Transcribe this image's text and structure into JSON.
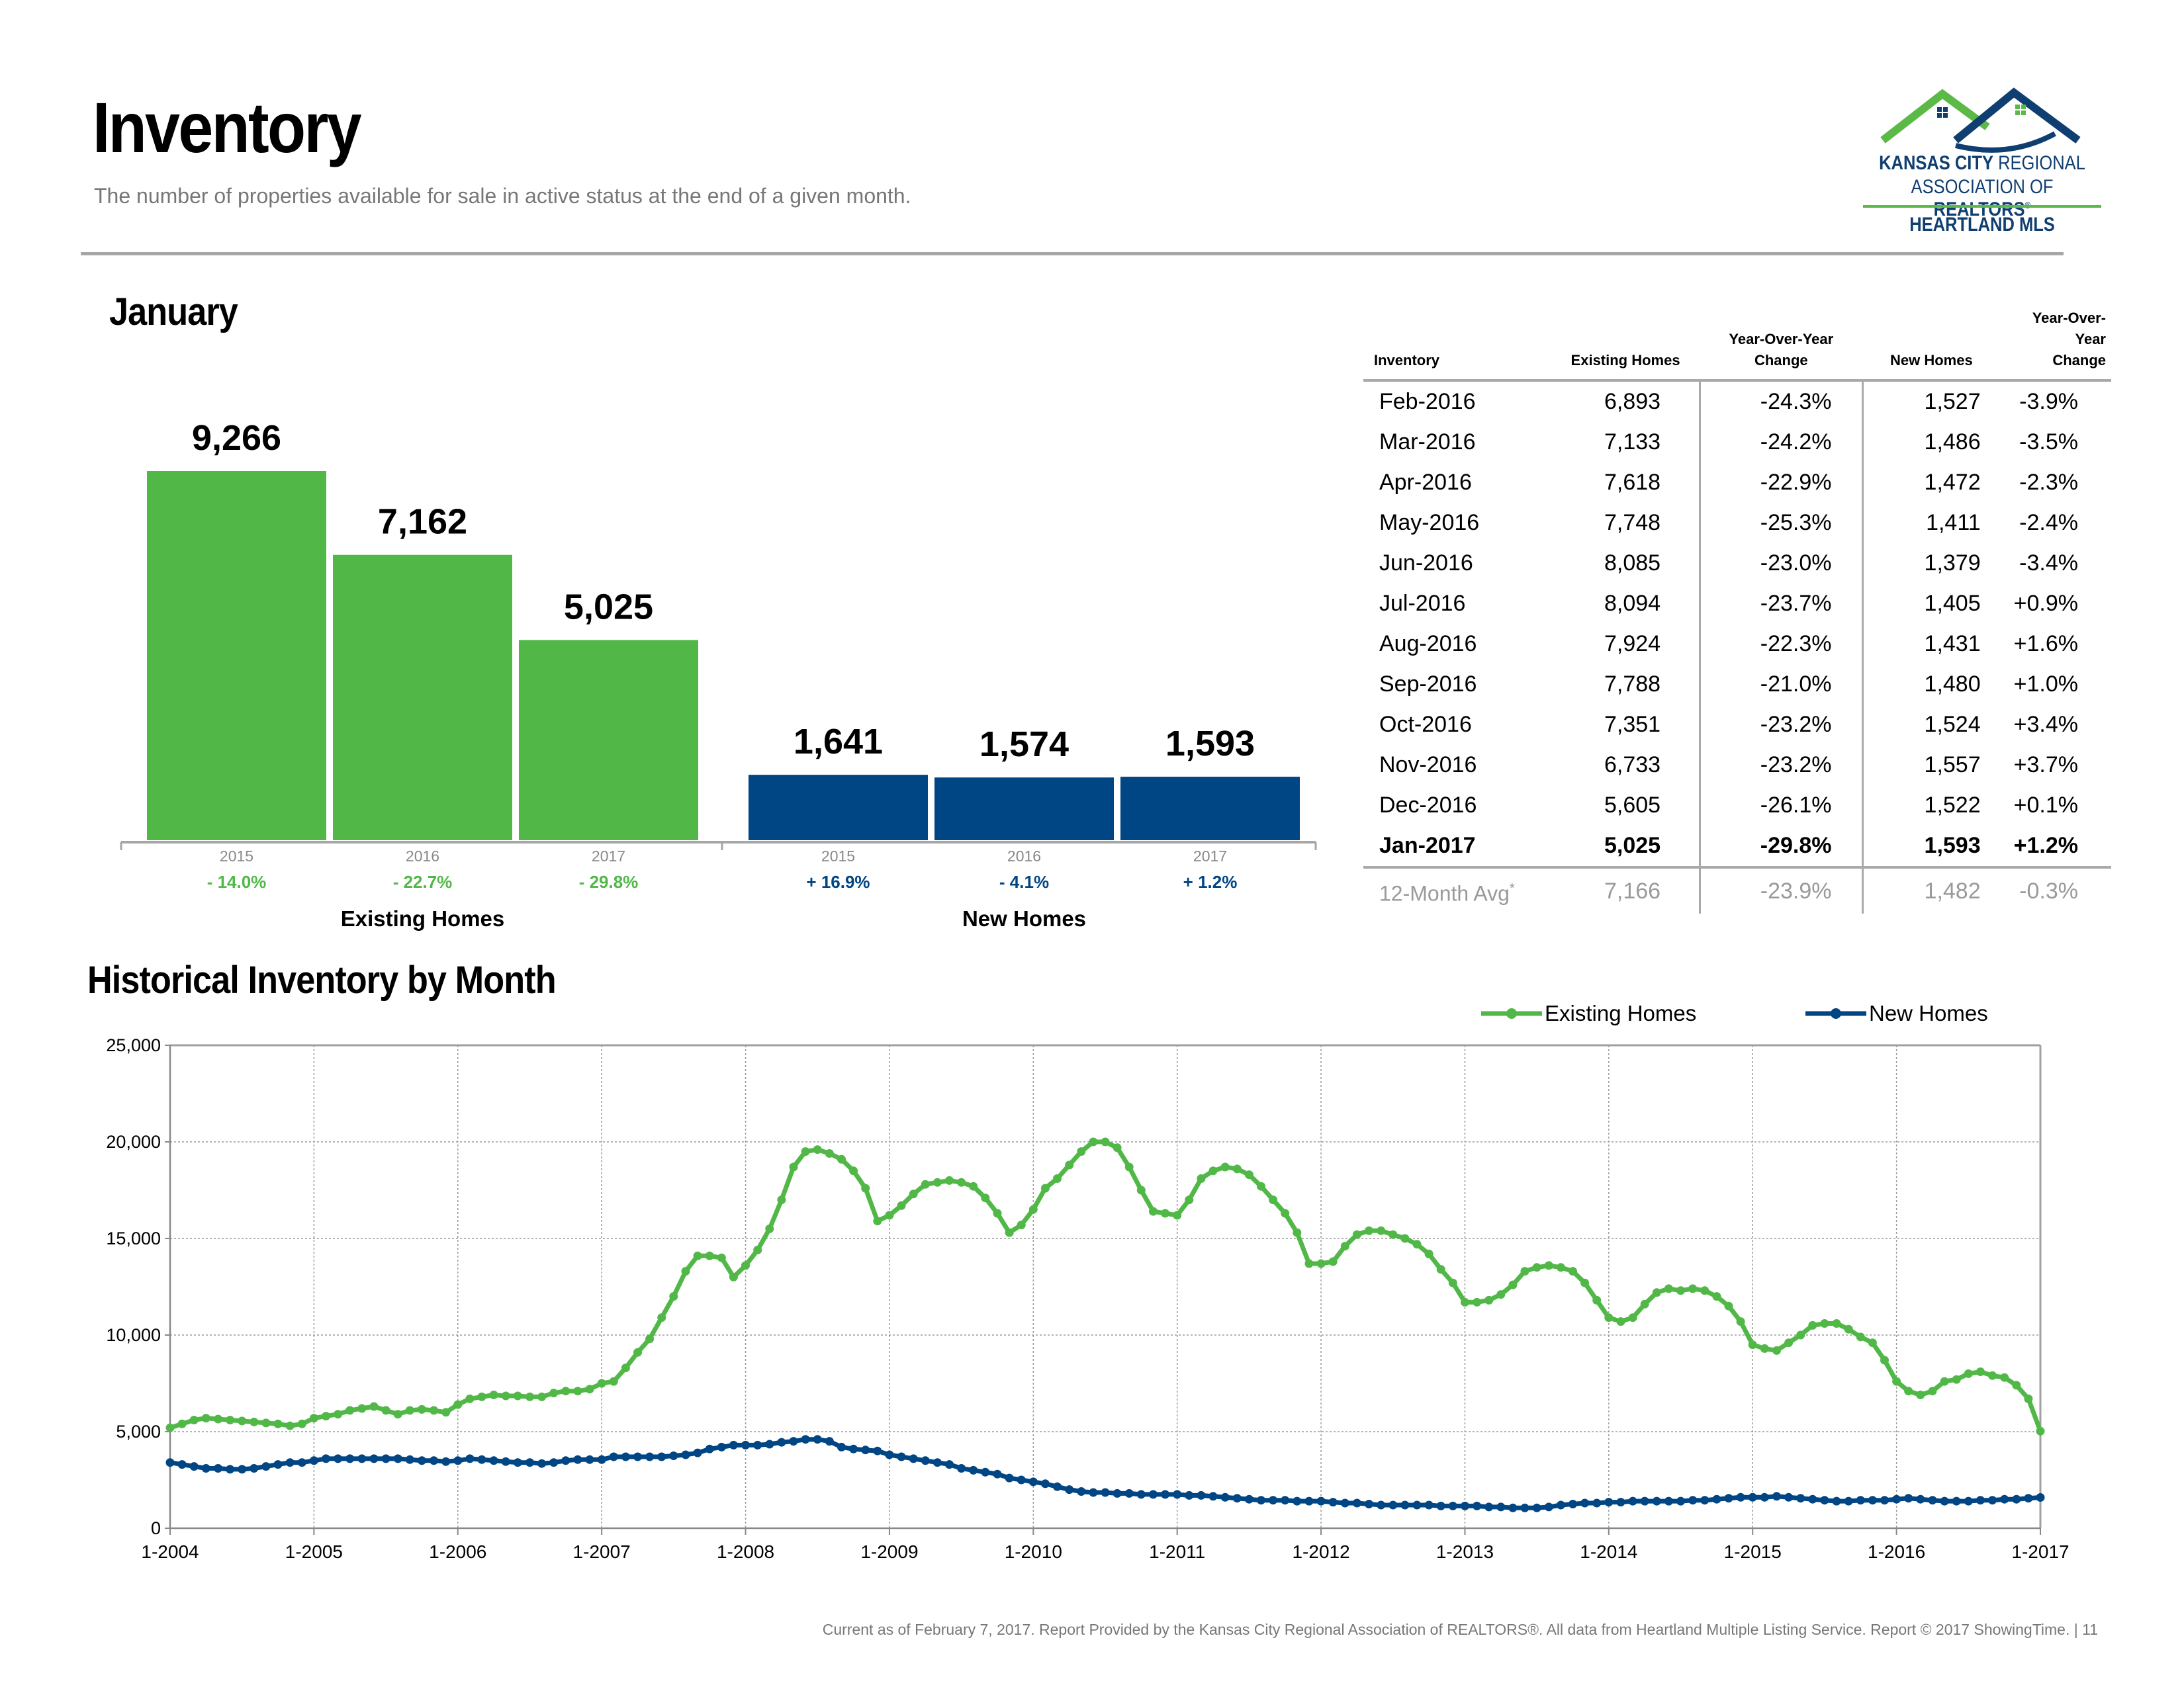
{
  "header": {
    "title": "Inventory",
    "subtitle": "The number of properties available for sale in active status at the end of a given month."
  },
  "logo": {
    "line1a": "KANSAS CITY",
    "line1b": " REGIONAL",
    "line2a": "ASSOCIATION OF ",
    "line2b": "REALTORS",
    "reg": "®",
    "line3": "HEARTLAND MLS",
    "colors": {
      "green": "#5bb947",
      "blue": "#0f3e70"
    }
  },
  "bar_section": {
    "title": "January"
  },
  "table": {
    "headers": {
      "col0": "Inventory",
      "col1": "Existing Homes",
      "col2_a": "Year-Over-Year",
      "col2_b": "Change",
      "col3": "New Homes",
      "col4_a": "Year-Over-Year",
      "col4_b": "Change"
    },
    "rows": [
      [
        "Feb-2016",
        "6,893",
        "-24.3%",
        "1,527",
        "-3.9%"
      ],
      [
        "Mar-2016",
        "7,133",
        "-24.2%",
        "1,486",
        "-3.5%"
      ],
      [
        "Apr-2016",
        "7,618",
        "-22.9%",
        "1,472",
        "-2.3%"
      ],
      [
        "May-2016",
        "7,748",
        "-25.3%",
        "1,411",
        "-2.4%"
      ],
      [
        "Jun-2016",
        "8,085",
        "-23.0%",
        "1,379",
        "-3.4%"
      ],
      [
        "Jul-2016",
        "8,094",
        "-23.7%",
        "1,405",
        "+0.9%"
      ],
      [
        "Aug-2016",
        "7,924",
        "-22.3%",
        "1,431",
        "+1.6%"
      ],
      [
        "Sep-2016",
        "7,788",
        "-21.0%",
        "1,480",
        "+1.0%"
      ],
      [
        "Oct-2016",
        "7,351",
        "-23.2%",
        "1,524",
        "+3.4%"
      ],
      [
        "Nov-2016",
        "6,733",
        "-23.2%",
        "1,557",
        "+3.7%"
      ],
      [
        "Dec-2016",
        "5,605",
        "-26.1%",
        "1,522",
        "+0.1%"
      ],
      [
        "Jan-2017",
        "5,025",
        "-29.8%",
        "1,593",
        "+1.2%"
      ]
    ],
    "avg_row": {
      "label": "12-Month Avg",
      "mark": "*",
      "values": [
        "7,166",
        "-23.9%",
        "1,482",
        "-0.3%"
      ]
    }
  },
  "hist_section": {
    "title": "Historical Inventory by Month"
  },
  "footer": "Current as of February 7, 2017.  Report Provided by the Kansas City Regional Association of REALTORS®. All data from Heartland Multiple Listing Service. Report © 2017 ShowingTime.  |  11",
  "chart_data": [
    {
      "type": "bar",
      "title": "January",
      "groups": [
        {
          "name": "Existing Homes",
          "color": "#51b848",
          "bars": [
            {
              "year": "2015",
              "value": 9266,
              "label": "9,266",
              "change": "- 14.0%"
            },
            {
              "year": "2016",
              "value": 7162,
              "label": "7,162",
              "change": "- 22.7%"
            },
            {
              "year": "2017",
              "value": 5025,
              "label": "5,025",
              "change": "- 29.8%"
            }
          ]
        },
        {
          "name": "New Homes",
          "color": "#004584",
          "bars": [
            {
              "year": "2015",
              "value": 1641,
              "label": "1,641",
              "change": "+ 16.9%"
            },
            {
              "year": "2016",
              "value": 1574,
              "label": "1,574",
              "change": "- 4.1%"
            },
            {
              "year": "2017",
              "value": 1593,
              "label": "1,593",
              "change": "+ 1.2%"
            }
          ]
        }
      ]
    },
    {
      "type": "line",
      "title": "Historical Inventory by Month",
      "legend_position": "top-right",
      "grid": true,
      "ylim": [
        0,
        25000
      ],
      "yticks": [
        0,
        5000,
        10000,
        15000,
        20000,
        25000
      ],
      "ytick_labels": [
        "0",
        "5,000",
        "10,000",
        "15,000",
        "20,000",
        "25,000"
      ],
      "xtick_labels": [
        "1-2004",
        "1-2005",
        "1-2006",
        "1-2007",
        "1-2008",
        "1-2009",
        "1-2010",
        "1-2011",
        "1-2012",
        "1-2013",
        "1-2014",
        "1-2015",
        "1-2016",
        "1-2017"
      ],
      "start": "1-2004",
      "series": [
        {
          "name": "Existing Homes",
          "color": "#51b848",
          "values": [
            5200,
            5400,
            5600,
            5700,
            5650,
            5600,
            5550,
            5500,
            5450,
            5400,
            5300,
            5400,
            5700,
            5800,
            5900,
            6100,
            6200,
            6300,
            6100,
            5900,
            6100,
            6150,
            6100,
            6000,
            6400,
            6700,
            6800,
            6900,
            6850,
            6850,
            6800,
            6800,
            7000,
            7100,
            7100,
            7200,
            7500,
            7600,
            8300,
            9100,
            9800,
            10900,
            12000,
            13300,
            14100,
            14100,
            14000,
            13000,
            13600,
            14400,
            15500,
            17000,
            18700,
            19500,
            19600,
            19400,
            19100,
            18500,
            17600,
            15900,
            16200,
            16700,
            17300,
            17800,
            17900,
            18000,
            17900,
            17700,
            17100,
            16300,
            15300,
            15700,
            16500,
            17600,
            18100,
            18800,
            19500,
            20000,
            20000,
            19700,
            18700,
            17500,
            16400,
            16300,
            16200,
            17000,
            18100,
            18500,
            18700,
            18600,
            18300,
            17700,
            17000,
            16300,
            15300,
            13700,
            13700,
            13800,
            14600,
            15200,
            15400,
            15400,
            15200,
            15000,
            14700,
            14200,
            13400,
            12700,
            11700,
            11700,
            11800,
            12100,
            12600,
            13300,
            13500,
            13600,
            13500,
            13300,
            12700,
            11800,
            10900,
            10700,
            10900,
            11600,
            12200,
            12400,
            12300,
            12400,
            12300,
            12000,
            11500,
            10700,
            9500,
            9300,
            9200,
            9600,
            10000,
            10500,
            10600,
            10600,
            10300,
            9900,
            9600,
            8700,
            7600,
            7100,
            6900,
            7100,
            7600,
            7700,
            8000,
            8100,
            7900,
            7800,
            7400,
            6700,
            5025
          ]
        },
        {
          "name": "New Homes",
          "color": "#004584",
          "values": [
            3400,
            3300,
            3200,
            3100,
            3100,
            3050,
            3050,
            3100,
            3200,
            3300,
            3400,
            3400,
            3500,
            3600,
            3600,
            3600,
            3600,
            3600,
            3600,
            3600,
            3550,
            3500,
            3500,
            3450,
            3500,
            3600,
            3550,
            3500,
            3450,
            3400,
            3400,
            3350,
            3400,
            3500,
            3550,
            3550,
            3550,
            3700,
            3700,
            3700,
            3700,
            3700,
            3750,
            3800,
            3900,
            4100,
            4200,
            4300,
            4300,
            4300,
            4350,
            4450,
            4500,
            4600,
            4600,
            4500,
            4200,
            4100,
            4050,
            4000,
            3800,
            3700,
            3600,
            3500,
            3400,
            3300,
            3100,
            3000,
            2900,
            2800,
            2600,
            2500,
            2400,
            2300,
            2150,
            2000,
            1900,
            1850,
            1850,
            1800,
            1800,
            1750,
            1750,
            1750,
            1750,
            1700,
            1700,
            1650,
            1600,
            1550,
            1500,
            1450,
            1450,
            1450,
            1400,
            1400,
            1400,
            1350,
            1300,
            1300,
            1250,
            1200,
            1200,
            1200,
            1200,
            1200,
            1150,
            1150,
            1150,
            1150,
            1100,
            1100,
            1050,
            1050,
            1050,
            1100,
            1200,
            1250,
            1300,
            1300,
            1350,
            1350,
            1400,
            1400,
            1400,
            1400,
            1400,
            1450,
            1450,
            1500,
            1550,
            1600,
            1600,
            1600,
            1650,
            1600,
            1550,
            1500,
            1450,
            1400,
            1400,
            1450,
            1450,
            1450,
            1500,
            1550,
            1500,
            1450,
            1400,
            1400,
            1400,
            1450,
            1450,
            1500,
            1500,
            1550,
            1593
          ]
        }
      ]
    }
  ]
}
